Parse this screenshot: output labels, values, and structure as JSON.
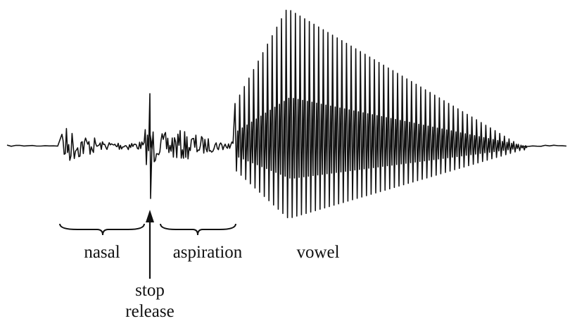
{
  "labels": [
    "nasal",
    "aspiration",
    "vowel"
  ],
  "arrow_label": [
    "stop",
    "release"
  ]
}
